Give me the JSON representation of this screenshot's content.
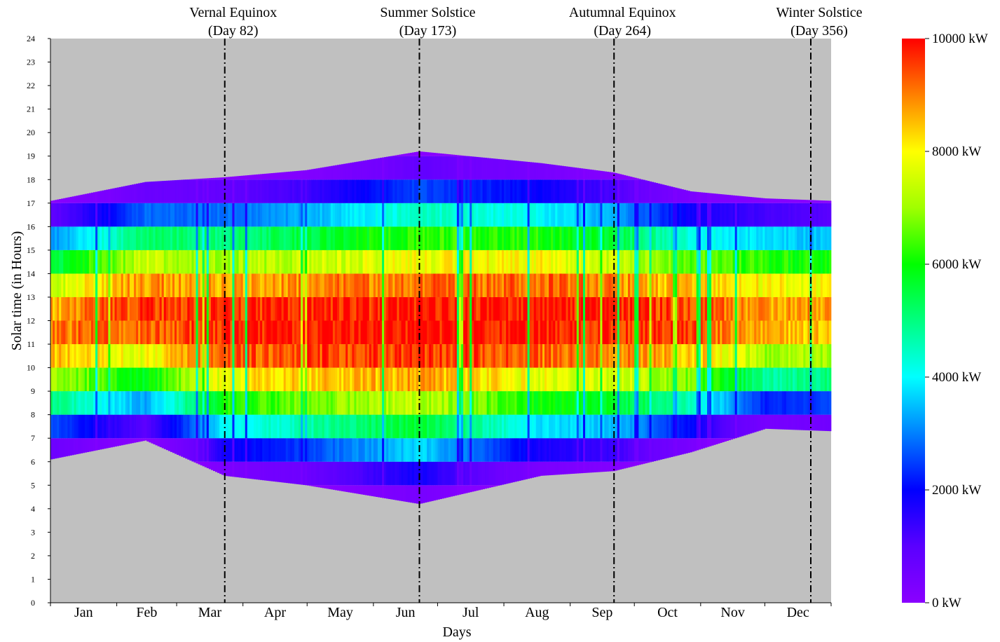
{
  "chart_data": {
    "type": "heatmap",
    "xlabel": "Days",
    "ylabel": "Solar time (in Hours)",
    "x_range": [
      1,
      365
    ],
    "ylim": [
      0,
      24
    ],
    "y_ticks": [
      "0",
      "1",
      "2",
      "3",
      "4",
      "5",
      "6",
      "7",
      "8",
      "9",
      "10",
      "11",
      "12",
      "13",
      "14",
      "15",
      "16",
      "17",
      "18",
      "19",
      "20",
      "21",
      "22",
      "23",
      "24"
    ],
    "months": [
      {
        "label": "Jan",
        "start_day": 1
      },
      {
        "label": "Feb",
        "start_day": 32
      },
      {
        "label": "Mar",
        "start_day": 60
      },
      {
        "label": "Apr",
        "start_day": 91
      },
      {
        "label": "May",
        "start_day": 121
      },
      {
        "label": "Jun",
        "start_day": 152
      },
      {
        "label": "Jul",
        "start_day": 182
      },
      {
        "label": "Aug",
        "start_day": 213
      },
      {
        "label": "Sep",
        "start_day": 244
      },
      {
        "label": "Oct",
        "start_day": 274
      },
      {
        "label": "Nov",
        "start_day": 305
      },
      {
        "label": "Dec",
        "start_day": 335
      }
    ],
    "events": [
      {
        "name": "Vernal Equinox",
        "sub": "(Day 82)",
        "day": 82
      },
      {
        "name": "Summer Solstice",
        "sub": "(Day 173)",
        "day": 173
      },
      {
        "name": "Autumnal Equinox",
        "sub": "(Day 264)",
        "day": 264
      },
      {
        "name": "Winter Solstice",
        "sub": "(Day 356)",
        "day": 356
      }
    ],
    "colorbar": {
      "min": 0,
      "max": 10000,
      "unit": "kW",
      "tick_labels": [
        "10000 kW",
        "8000 kW",
        "6000 kW",
        "4000 kW",
        "2000 kW",
        "0 kW"
      ],
      "tick_values": [
        10000,
        8000,
        6000,
        4000,
        2000,
        0
      ]
    },
    "daily_profile": {
      "description_days": [
        1,
        45,
        82,
        120,
        173,
        230,
        264,
        300,
        335,
        365
      ],
      "sunrise_hour": [
        6.1,
        6.9,
        5.4,
        5.0,
        4.2,
        5.4,
        5.6,
        6.4,
        7.4,
        7.3
      ],
      "sunset_hour": [
        17.1,
        17.9,
        18.1,
        18.4,
        19.2,
        18.7,
        18.3,
        17.5,
        17.2,
        17.1
      ],
      "peak_kw": [
        9200,
        9700,
        10000,
        10200,
        10200,
        10200,
        10000,
        9700,
        9000,
        9000
      ]
    },
    "background_color": "#c0c0c0",
    "grid": false
  }
}
